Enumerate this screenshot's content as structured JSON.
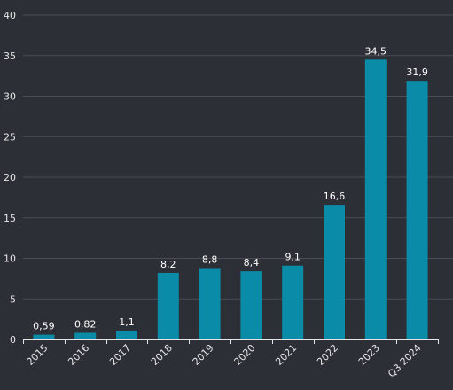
{
  "chart_data": {
    "type": "bar",
    "title": "",
    "xlabel": "",
    "ylabel": "",
    "categories": [
      "2015",
      "2016",
      "2017",
      "2018",
      "2019",
      "2020",
      "2021",
      "2022",
      "2023",
      "Q3 2024"
    ],
    "values": [
      0.59,
      0.82,
      1.1,
      8.2,
      8.8,
      8.4,
      9.1,
      16.6,
      34.5,
      31.9
    ],
    "value_labels": [
      "0,59",
      "0,82",
      "1,1",
      "8,2",
      "8,8",
      "8,4",
      "9,1",
      "16,6",
      "34,5",
      "31,9"
    ],
    "ylim": [
      0,
      40
    ],
    "yticks": [
      0,
      5,
      10,
      15,
      20,
      25,
      30,
      35,
      40
    ],
    "grid": true,
    "legend": "none",
    "colors": {
      "background": "#2d2f36",
      "bar": "#0a8ba8",
      "grid": "#4a4d56",
      "axis": "#e6e6e6",
      "text": "#e6e6e6"
    }
  }
}
